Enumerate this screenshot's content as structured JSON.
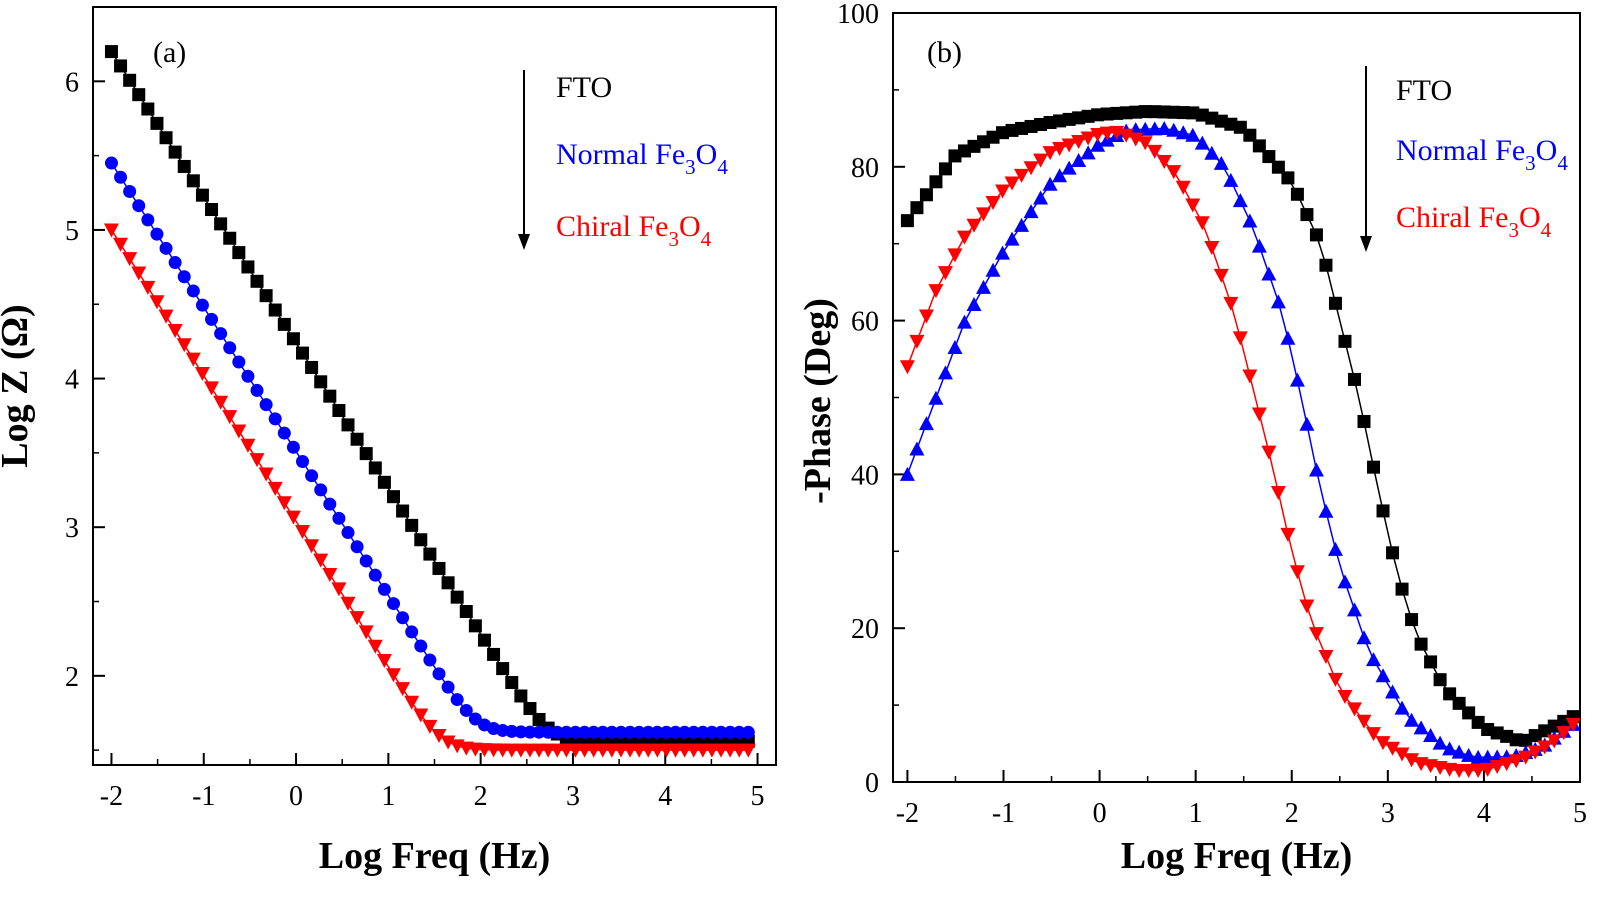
{
  "colors": {
    "FTO": "#000000",
    "Normal": "#0000ff",
    "Chiral": "#ff0000"
  },
  "legend": {
    "entries": [
      {
        "key": "FTO",
        "parts": [
          {
            "t": "FTO",
            "sub": false
          }
        ],
        "color": "#000000"
      },
      {
        "key": "Normal",
        "parts": [
          {
            "t": "Normal Fe",
            "sub": false
          },
          {
            "t": "3",
            "sub": true
          },
          {
            "t": "O",
            "sub": false
          },
          {
            "t": "4",
            "sub": true
          }
        ],
        "color": "#0000ff"
      },
      {
        "key": "Chiral",
        "parts": [
          {
            "t": "Chiral Fe",
            "sub": false
          },
          {
            "t": "3",
            "sub": true
          },
          {
            "t": "O",
            "sub": false
          },
          {
            "t": "4",
            "sub": true
          }
        ],
        "color": "#ff0000"
      }
    ]
  },
  "chart_data": [
    {
      "panel_label": "(a)",
      "type": "scatter",
      "xlabel": "Log Freq (Hz)",
      "ylabel": "Log Z (Ω)",
      "xlim": [
        -2.2,
        5.2
      ],
      "ylim": [
        1.4,
        6.5
      ],
      "xticks": [
        -2,
        -1,
        0,
        1,
        2,
        3,
        4,
        5
      ],
      "xtick_labels": [
        "-2",
        "-1",
        "0",
        "1",
        "2",
        "3",
        "4",
        "5"
      ],
      "yticks": [
        2,
        3,
        4,
        5,
        6
      ],
      "ytick_labels": [
        "2",
        "3",
        "4",
        "5",
        "6"
      ],
      "points_per_series": 71,
      "series": [
        {
          "name": "FTO",
          "marker": "square",
          "color": "#000000",
          "curve": {
            "kind": "log_z",
            "start": 6.2,
            "slope": 0.98,
            "floor": 1.56
          },
          "x": [
            -2,
            0,
            1,
            2,
            3,
            4,
            4.9
          ],
          "y": [
            6.2,
            4.26,
            3.28,
            2.33,
            1.66,
            1.57,
            1.56
          ]
        },
        {
          "name": "Normal Fe3O4",
          "marker": "circle",
          "color": "#0000ff",
          "curve": {
            "kind": "log_z",
            "start": 5.45,
            "slope": 0.97,
            "floor": 1.62
          },
          "x": [
            -2,
            0,
            1,
            2,
            3,
            4,
            4.9
          ],
          "y": [
            5.45,
            3.52,
            2.58,
            1.77,
            1.65,
            1.62,
            1.62
          ]
        },
        {
          "name": "Chiral Fe3O4",
          "marker": "triangle-down",
          "color": "#ff0000",
          "curve": {
            "kind": "log_z",
            "start": 5.0,
            "slope": 0.98,
            "floor": 1.5
          },
          "x": [
            -2,
            0,
            1,
            2,
            3,
            4,
            4.9
          ],
          "y": [
            5.0,
            3.05,
            2.1,
            1.57,
            1.52,
            1.51,
            1.5
          ]
        }
      ]
    },
    {
      "panel_label": "(b)",
      "type": "scatter",
      "xlabel": "Log Freq (Hz)",
      "ylabel": "-Phase (Deg)",
      "xlim": [
        -2.15,
        5.0
      ],
      "ylim": [
        0,
        100
      ],
      "xticks": [
        -2,
        -1,
        0,
        1,
        2,
        3,
        4,
        5
      ],
      "xtick_labels": [
        "-2",
        "-1",
        "0",
        "1",
        "2",
        "3",
        "4",
        "5"
      ],
      "yticks": [
        0,
        20,
        40,
        60,
        80,
        100
      ],
      "ytick_labels": [
        "0",
        "20",
        "40",
        "60",
        "80",
        "100"
      ],
      "points_per_series": 71,
      "series": [
        {
          "name": "FTO",
          "marker": "square",
          "color": "#000000",
          "x": [
            -2.0,
            -1.5,
            -1.0,
            -0.5,
            0.0,
            0.5,
            1.0,
            1.5,
            2.0,
            2.3,
            2.5,
            2.7,
            2.9,
            3.1,
            3.3,
            3.6,
            4.0,
            4.4,
            4.93
          ],
          "y": [
            73,
            81.5,
            84.5,
            85.8,
            86.8,
            87.2,
            87,
            85,
            78,
            70,
            60,
            50,
            38,
            27,
            19,
            12,
            7,
            5.2,
            8.5
          ]
        },
        {
          "name": "Normal Fe3O4",
          "marker": "triangle-up",
          "color": "#0000ff",
          "x": [
            -2.0,
            -1.7,
            -1.4,
            -1.0,
            -0.5,
            0.0,
            0.3,
            0.7,
            1.0,
            1.3,
            1.6,
            1.9,
            2.1,
            2.3,
            2.5,
            2.8,
            3.2,
            3.6,
            3.9,
            4.3,
            4.6,
            4.93
          ],
          "y": [
            40,
            50,
            60,
            69,
            78,
            83,
            84.8,
            85,
            84,
            80,
            72,
            61,
            50,
            38,
            28,
            17,
            8.5,
            4.5,
            3.2,
            3.3,
            4.5,
            7.5
          ]
        },
        {
          "name": "Chiral Fe3O4",
          "marker": "triangle-down",
          "color": "#ff0000",
          "x": [
            -2.0,
            -1.7,
            -1.4,
            -1.0,
            -0.5,
            0.0,
            0.2,
            0.5,
            0.8,
            1.1,
            1.4,
            1.6,
            1.8,
            2.0,
            2.2,
            2.5,
            2.9,
            3.3,
            3.7,
            4.0,
            4.4,
            4.7,
            4.93
          ],
          "y": [
            54,
            64,
            71,
            77,
            82,
            84.3,
            84.5,
            83,
            79,
            72,
            61,
            51,
            41,
            30,
            21,
            12,
            5.5,
            2.5,
            1.5,
            1.5,
            3,
            5,
            7.5
          ]
        }
      ]
    }
  ]
}
